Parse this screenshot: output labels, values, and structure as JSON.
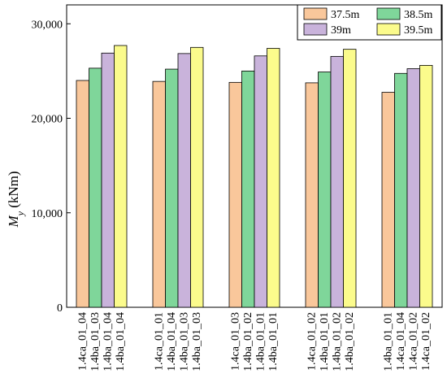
{
  "chart_data": {
    "type": "bar",
    "ylabel": {
      "symbol": "M",
      "subscript": "y",
      "unit": " (kNm)"
    },
    "ylim": [
      0,
      32000
    ],
    "yticks": [
      0,
      10000,
      20000,
      30000
    ],
    "ytick_labels": [
      "0",
      "10,000",
      "20,000",
      "30,000"
    ],
    "groups": [
      {
        "labels": [
          "1.4ca_01_04",
          "1.4ba_01_03",
          "1.4ba_01_04",
          "1.4ba_01_04"
        ],
        "values": [
          24000,
          25300,
          26900,
          27700
        ]
      },
      {
        "labels": [
          "1.4ca_01_01",
          "1.4ba_01_04",
          "1.4ba_01_03",
          "1.4ba_01_03"
        ],
        "values": [
          23900,
          25200,
          26850,
          27500
        ]
      },
      {
        "labels": [
          "1.4ca_01_03",
          "1.4ba_01_02",
          "1.4ba_01_01",
          "1.4ba_01_01"
        ],
        "values": [
          23800,
          25000,
          26600,
          27400
        ]
      },
      {
        "labels": [
          "1.4ca_01_02",
          "1.4ba_01_01",
          "1.4ba_01_02",
          "1.4ba_01_02"
        ],
        "values": [
          23750,
          24900,
          26550,
          27300
        ]
      },
      {
        "labels": [
          "1.4ba_01_01",
          "1.4ca_01_04",
          "1.4ca_01_02",
          "1.4ca_01_02"
        ],
        "values": [
          22750,
          24750,
          25250,
          25600
        ]
      }
    ],
    "series": [
      {
        "name": "37.5m",
        "color": "#f9c79b"
      },
      {
        "name": "38.5m",
        "color": "#7fd69a"
      },
      {
        "name": "39m",
        "color": "#c9b3db"
      },
      {
        "name": "39.5m",
        "color": "#fbfb8c"
      }
    ],
    "legend": "top-right",
    "grid": false
  }
}
